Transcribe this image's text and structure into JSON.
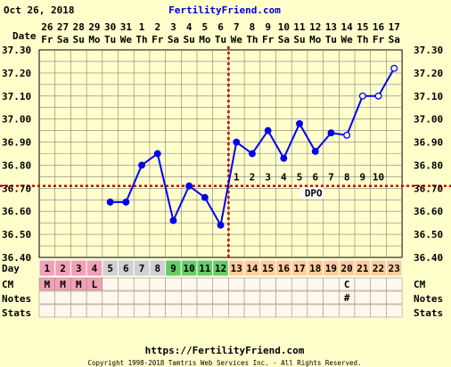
{
  "header": {
    "date": "Oct 26, 2018",
    "site": "FertilityFriend.com"
  },
  "row_labels": {
    "date": "Date",
    "day": "Day",
    "cm": "CM",
    "notes": "Notes",
    "stats": "Stats"
  },
  "footer": {
    "url": "https://FertilityFriend.com",
    "copyright": "Copyright 1998-2018 Tamtris Web Services Inc. - All Rights Reserved."
  },
  "colors": {
    "background": "#ffffcc",
    "temp_line": "#0000ee",
    "coverline": "#cc0000",
    "grid": "#808080",
    "day_bleed": "#f2a0b8",
    "day_normal": "#d0d0d0",
    "day_fertile": "#66cc66",
    "day_luteal": "#ffcc99"
  },
  "chart_data": {
    "type": "line",
    "dates": [
      {
        "num": "26",
        "dow": "Fr"
      },
      {
        "num": "27",
        "dow": "Sa"
      },
      {
        "num": "28",
        "dow": "Su"
      },
      {
        "num": "29",
        "dow": "Mo"
      },
      {
        "num": "30",
        "dow": "Tu"
      },
      {
        "num": "31",
        "dow": "We"
      },
      {
        "num": "1",
        "dow": "Th"
      },
      {
        "num": "2",
        "dow": "Fr"
      },
      {
        "num": "3",
        "dow": "Sa"
      },
      {
        "num": "4",
        "dow": "Su"
      },
      {
        "num": "5",
        "dow": "Mo"
      },
      {
        "num": "6",
        "dow": "Tu"
      },
      {
        "num": "7",
        "dow": "We"
      },
      {
        "num": "8",
        "dow": "Th"
      },
      {
        "num": "9",
        "dow": "Fr"
      },
      {
        "num": "10",
        "dow": "Sa"
      },
      {
        "num": "11",
        "dow": "Su"
      },
      {
        "num": "12",
        "dow": "Mo"
      },
      {
        "num": "13",
        "dow": "Tu"
      },
      {
        "num": "14",
        "dow": "We"
      },
      {
        "num": "15",
        "dow": "Th"
      },
      {
        "num": "16",
        "dow": "Fr"
      },
      {
        "num": "17",
        "dow": "Sa"
      }
    ],
    "days": [
      "1",
      "2",
      "3",
      "4",
      "5",
      "6",
      "7",
      "8",
      "9",
      "10",
      "11",
      "12",
      "13",
      "14",
      "15",
      "16",
      "17",
      "18",
      "19",
      "20",
      "21",
      "22",
      "23"
    ],
    "day_phase": [
      "bleed",
      "bleed",
      "bleed",
      "bleed",
      "normal",
      "normal",
      "normal",
      "normal",
      "fertile",
      "fertile",
      "fertile",
      "fertile",
      "luteal",
      "luteal",
      "luteal",
      "luteal",
      "luteal",
      "luteal",
      "luteal",
      "luteal",
      "luteal",
      "luteal",
      "luteal"
    ],
    "temperatures": [
      null,
      null,
      null,
      null,
      36.64,
      36.64,
      36.8,
      36.85,
      36.56,
      36.71,
      36.66,
      36.54,
      36.9,
      36.85,
      36.95,
      36.83,
      36.98,
      36.86,
      36.94,
      36.93,
      37.1,
      37.1,
      37.22
    ],
    "open_points_days": [
      20,
      21,
      22,
      23
    ],
    "ylim": [
      36.4,
      37.3
    ],
    "yticks": [
      "37.30",
      "37.20",
      "37.10",
      "37.00",
      "36.90",
      "36.80",
      "36.70",
      "36.60",
      "36.50",
      "36.40"
    ],
    "coverline": 36.71,
    "ovulation_day": 12,
    "dpo_labels": [
      "1",
      "2",
      "3",
      "4",
      "5",
      "6",
      "7",
      "8",
      "9",
      "10"
    ],
    "dpo_text": "DPO",
    "cm": [
      "M",
      "M",
      "M",
      "L",
      "",
      "",
      "",
      "",
      "",
      "",
      "",
      "",
      "",
      "",
      "",
      "",
      "",
      "",
      "",
      "C",
      "",
      "",
      ""
    ],
    "notes": [
      "",
      "",
      "",
      "",
      "",
      "",
      "",
      "",
      "",
      "",
      "",
      "",
      "",
      "",
      "",
      "",
      "",
      "",
      "",
      "#",
      "",
      "",
      ""
    ]
  }
}
